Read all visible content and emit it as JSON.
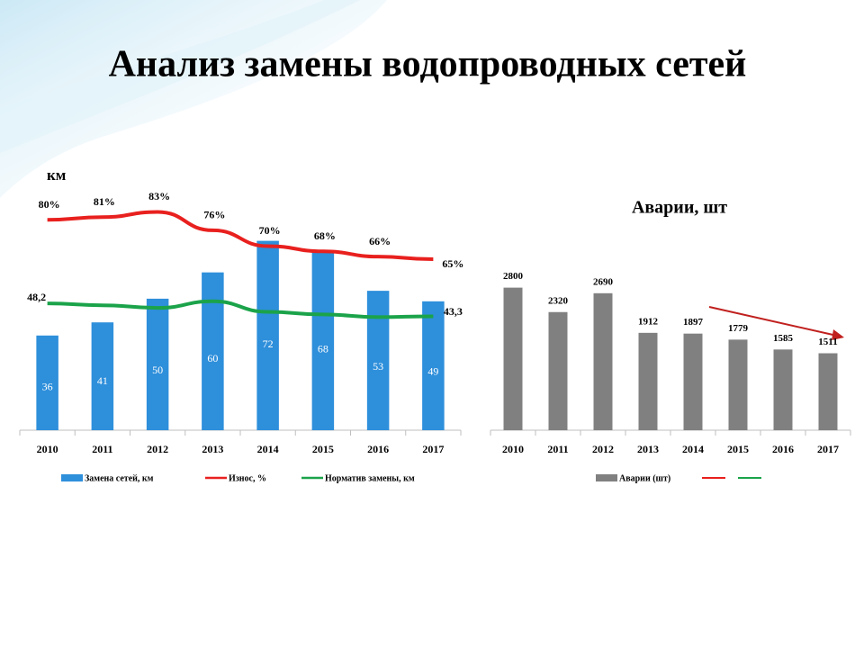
{
  "title": "Анализ замены водопроводных сетей",
  "chart_data": [
    {
      "type": "combo",
      "y_label": "км",
      "categories": [
        "2010",
        "2011",
        "2012",
        "2013",
        "2014",
        "2015",
        "2016",
        "2017"
      ],
      "ylim": [
        0,
        90
      ],
      "series": [
        {
          "name": "Замена сетей, км",
          "kind": "bar",
          "color": "#2e8fdb",
          "values": [
            36,
            41,
            50,
            60,
            72,
            68,
            53,
            49
          ]
        },
        {
          "name": "Износ, %",
          "kind": "line",
          "color": "#e8201e",
          "values": [
            80,
            81,
            83,
            76,
            70,
            68,
            66,
            65
          ],
          "value_labels": [
            "80%",
            "81%",
            "83%",
            "76%",
            "70%",
            "68%",
            "66%",
            "65%"
          ]
        },
        {
          "name": "Норматив замены, км",
          "kind": "line",
          "color": "#1ba34a",
          "values": [
            48.2,
            47.5,
            46.5,
            49,
            45,
            44,
            43,
            43.3
          ],
          "value_labels": [
            "48,2",
            null,
            null,
            null,
            null,
            null,
            null,
            "43,3"
          ]
        }
      ]
    },
    {
      "type": "bar",
      "title": "Аварии, шт",
      "categories": [
        "2010",
        "2011",
        "2012",
        "2013",
        "2014",
        "2015",
        "2016",
        "2017"
      ],
      "ylim": [
        0,
        3500
      ],
      "series": [
        {
          "name": "Аварии (шт)",
          "kind": "bar",
          "color": "#808080",
          "values": [
            2800,
            2320,
            2690,
            1912,
            1897,
            1779,
            1585,
            1511
          ]
        }
      ]
    }
  ]
}
